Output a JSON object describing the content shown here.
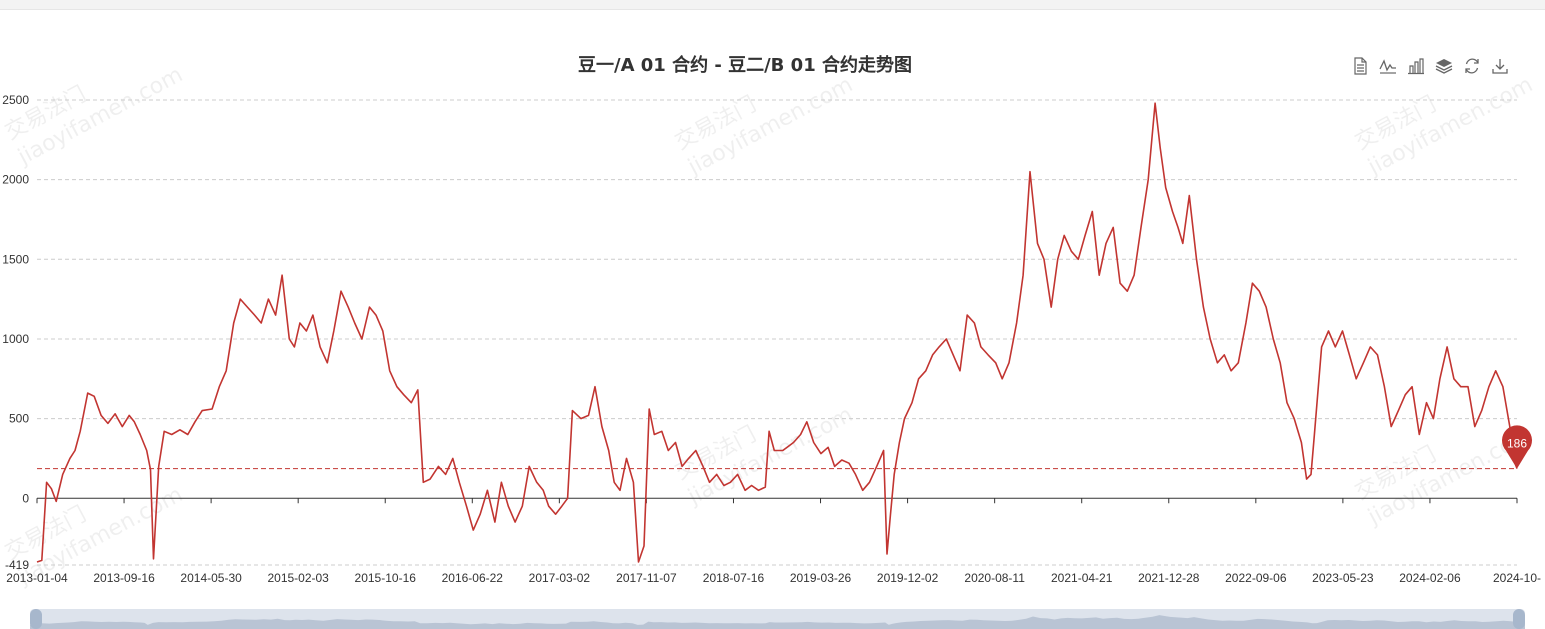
{
  "chart_title": "豆一/A 01 合约 - 豆二/B 01 合约走势图",
  "toolbox": [
    {
      "name": "data-view-icon"
    },
    {
      "name": "line-chart-icon"
    },
    {
      "name": "bar-chart-icon"
    },
    {
      "name": "stack-icon"
    },
    {
      "name": "restore-icon"
    },
    {
      "name": "download-icon"
    }
  ],
  "watermark": {
    "line1": "交易法门",
    "line2": "jiaoyifamen.com"
  },
  "colors": {
    "series": "#c23531",
    "grid": "#cccccc",
    "slider": "#c9d3e0"
  },
  "chart_data": {
    "type": "line",
    "title": "豆一/A 01 合约 - 豆二/B 01 合约走势图",
    "ylim": [
      -419,
      2500
    ],
    "y_ticks": [
      "2500",
      "2000",
      "1500",
      "1000",
      "500",
      "0",
      "-419"
    ],
    "x_ticks": [
      "2013-01-04",
      "2013-09-16",
      "2014-05-30",
      "2015-02-03",
      "2015-10-16",
      "2016-06-22",
      "2017-03-02",
      "2017-11-07",
      "2018-07-16",
      "2019-03-26",
      "2019-12-02",
      "2020-08-11",
      "2021-04-21",
      "2021-12-28",
      "2022-09-06",
      "2023-05-23",
      "2024-02-06",
      "2024-10-"
    ],
    "x_range": [
      "2013-01-04",
      "2024-10-31"
    ],
    "mark_line": 186,
    "mark_point": {
      "label": "186",
      "value": 186
    },
    "grid": true,
    "legend": "none",
    "series": [
      {
        "points": [
          [
            "2013-01-04",
            -400
          ],
          [
            "2013-01-18",
            -390
          ],
          [
            "2013-02-01",
            100
          ],
          [
            "2013-02-15",
            60
          ],
          [
            "2013-03-01",
            -20
          ],
          [
            "2013-03-20",
            150
          ],
          [
            "2013-04-10",
            250
          ],
          [
            "2013-04-25",
            300
          ],
          [
            "2013-05-10",
            420
          ],
          [
            "2013-06-01",
            660
          ],
          [
            "2013-06-20",
            640
          ],
          [
            "2013-07-10",
            520
          ],
          [
            "2013-07-30",
            470
          ],
          [
            "2013-08-20",
            530
          ],
          [
            "2013-09-10",
            450
          ],
          [
            "2013-09-30",
            520
          ],
          [
            "2013-10-15",
            480
          ],
          [
            "2013-11-01",
            400
          ],
          [
            "2013-11-20",
            300
          ],
          [
            "2013-12-01",
            180
          ],
          [
            "2013-12-10",
            -380
          ],
          [
            "2013-12-25",
            200
          ],
          [
            "2014-01-10",
            420
          ],
          [
            "2014-02-01",
            400
          ],
          [
            "2014-02-25",
            430
          ],
          [
            "2014-03-20",
            400
          ],
          [
            "2014-04-10",
            480
          ],
          [
            "2014-05-01",
            550
          ],
          [
            "2014-05-30",
            560
          ],
          [
            "2014-06-20",
            700
          ],
          [
            "2014-07-10",
            800
          ],
          [
            "2014-08-01",
            1100
          ],
          [
            "2014-08-20",
            1250
          ],
          [
            "2014-09-10",
            1200
          ],
          [
            "2014-10-01",
            1150
          ],
          [
            "2014-10-20",
            1100
          ],
          [
            "2014-11-10",
            1250
          ],
          [
            "2014-12-01",
            1150
          ],
          [
            "2014-12-20",
            1400
          ],
          [
            "2015-01-10",
            1000
          ],
          [
            "2015-01-25",
            950
          ],
          [
            "2015-02-10",
            1100
          ],
          [
            "2015-03-01",
            1050
          ],
          [
            "2015-03-20",
            1150
          ],
          [
            "2015-04-10",
            950
          ],
          [
            "2015-05-01",
            850
          ],
          [
            "2015-05-20",
            1050
          ],
          [
            "2015-06-10",
            1300
          ],
          [
            "2015-07-01",
            1200
          ],
          [
            "2015-07-20",
            1100
          ],
          [
            "2015-08-10",
            1000
          ],
          [
            "2015-09-01",
            1200
          ],
          [
            "2015-09-20",
            1150
          ],
          [
            "2015-10-10",
            1050
          ],
          [
            "2015-10-30",
            800
          ],
          [
            "2015-11-20",
            700
          ],
          [
            "2015-12-10",
            650
          ],
          [
            "2016-01-01",
            600
          ],
          [
            "2016-01-20",
            680
          ],
          [
            "2016-02-05",
            100
          ],
          [
            "2016-02-25",
            120
          ],
          [
            "2016-03-20",
            200
          ],
          [
            "2016-04-10",
            150
          ],
          [
            "2016-05-01",
            250
          ],
          [
            "2016-05-20",
            100
          ],
          [
            "2016-06-10",
            -50
          ],
          [
            "2016-06-30",
            -200
          ],
          [
            "2016-07-20",
            -100
          ],
          [
            "2016-08-10",
            50
          ],
          [
            "2016-09-01",
            -150
          ],
          [
            "2016-09-20",
            100
          ],
          [
            "2016-10-10",
            -50
          ],
          [
            "2016-10-30",
            -150
          ],
          [
            "2016-11-20",
            -50
          ],
          [
            "2016-12-10",
            200
          ],
          [
            "2017-01-01",
            100
          ],
          [
            "2017-01-20",
            50
          ],
          [
            "2017-02-05",
            -50
          ],
          [
            "2017-02-25",
            -100
          ],
          [
            "2017-03-15",
            -50
          ],
          [
            "2017-04-01",
            0
          ],
          [
            "2017-04-15",
            550
          ],
          [
            "2017-05-10",
            500
          ],
          [
            "2017-06-01",
            520
          ],
          [
            "2017-06-20",
            700
          ],
          [
            "2017-07-10",
            450
          ],
          [
            "2017-07-30",
            300
          ],
          [
            "2017-08-15",
            100
          ],
          [
            "2017-09-01",
            50
          ],
          [
            "2017-09-20",
            250
          ],
          [
            "2017-10-10",
            100
          ],
          [
            "2017-10-25",
            -400
          ],
          [
            "2017-11-10",
            -300
          ],
          [
            "2017-11-25",
            560
          ],
          [
            "2017-12-10",
            400
          ],
          [
            "2018-01-01",
            420
          ],
          [
            "2018-01-20",
            300
          ],
          [
            "2018-02-10",
            350
          ],
          [
            "2018-03-01",
            200
          ],
          [
            "2018-03-20",
            250
          ],
          [
            "2018-04-10",
            300
          ],
          [
            "2018-05-01",
            200
          ],
          [
            "2018-05-20",
            100
          ],
          [
            "2018-06-10",
            150
          ],
          [
            "2018-07-01",
            80
          ],
          [
            "2018-07-20",
            100
          ],
          [
            "2018-08-10",
            150
          ],
          [
            "2018-09-01",
            50
          ],
          [
            "2018-09-20",
            80
          ],
          [
            "2018-10-10",
            50
          ],
          [
            "2018-10-30",
            70
          ],
          [
            "2018-11-10",
            420
          ],
          [
            "2018-11-25",
            300
          ],
          [
            "2018-12-20",
            300
          ],
          [
            "2019-01-20",
            350
          ],
          [
            "2019-02-10",
            400
          ],
          [
            "2019-02-28",
            480
          ],
          [
            "2019-03-20",
            350
          ],
          [
            "2019-04-10",
            280
          ],
          [
            "2019-05-01",
            320
          ],
          [
            "2019-05-20",
            200
          ],
          [
            "2019-06-10",
            240
          ],
          [
            "2019-07-01",
            220
          ],
          [
            "2019-07-20",
            150
          ],
          [
            "2019-08-10",
            50
          ],
          [
            "2019-08-30",
            100
          ],
          [
            "2019-09-20",
            200
          ],
          [
            "2019-10-10",
            300
          ],
          [
            "2019-10-20",
            -350
          ],
          [
            "2019-10-30",
            -100
          ],
          [
            "2019-11-10",
            150
          ],
          [
            "2019-11-25",
            350
          ],
          [
            "2019-12-10",
            500
          ],
          [
            "2020-01-01",
            600
          ],
          [
            "2020-01-20",
            750
          ],
          [
            "2020-02-10",
            800
          ],
          [
            "2020-03-01",
            900
          ],
          [
            "2020-03-20",
            950
          ],
          [
            "2020-04-10",
            1000
          ],
          [
            "2020-04-30",
            900
          ],
          [
            "2020-05-20",
            800
          ],
          [
            "2020-06-10",
            1150
          ],
          [
            "2020-07-01",
            1100
          ],
          [
            "2020-07-20",
            950
          ],
          [
            "2020-08-10",
            900
          ],
          [
            "2020-09-01",
            850
          ],
          [
            "2020-09-20",
            750
          ],
          [
            "2020-10-10",
            850
          ],
          [
            "2020-11-01",
            1100
          ],
          [
            "2020-11-20",
            1400
          ],
          [
            "2020-12-10",
            2050
          ],
          [
            "2021-01-01",
            1600
          ],
          [
            "2021-01-20",
            1500
          ],
          [
            "2021-02-10",
            1200
          ],
          [
            "2021-03-01",
            1500
          ],
          [
            "2021-03-20",
            1650
          ],
          [
            "2021-04-10",
            1550
          ],
          [
            "2021-04-30",
            1500
          ],
          [
            "2021-05-20",
            1650
          ],
          [
            "2021-06-10",
            1800
          ],
          [
            "2021-06-30",
            1400
          ],
          [
            "2021-07-20",
            1600
          ],
          [
            "2021-08-10",
            1700
          ],
          [
            "2021-08-30",
            1350
          ],
          [
            "2021-09-20",
            1300
          ],
          [
            "2021-10-10",
            1400
          ],
          [
            "2021-10-30",
            1700
          ],
          [
            "2021-11-20",
            2000
          ],
          [
            "2021-12-10",
            2480
          ],
          [
            "2021-12-25",
            2200
          ],
          [
            "2022-01-10",
            1950
          ],
          [
            "2022-01-30",
            1800
          ],
          [
            "2022-02-15",
            1700
          ],
          [
            "2022-03-01",
            1600
          ],
          [
            "2022-03-20",
            1900
          ],
          [
            "2022-04-10",
            1500
          ],
          [
            "2022-04-30",
            1200
          ],
          [
            "2022-05-20",
            1000
          ],
          [
            "2022-06-10",
            850
          ],
          [
            "2022-06-30",
            900
          ],
          [
            "2022-07-20",
            800
          ],
          [
            "2022-08-10",
            850
          ],
          [
            "2022-09-01",
            1100
          ],
          [
            "2022-09-20",
            1350
          ],
          [
            "2022-10-10",
            1300
          ],
          [
            "2022-10-30",
            1200
          ],
          [
            "2022-11-20",
            1000
          ],
          [
            "2022-12-10",
            850
          ],
          [
            "2022-12-30",
            600
          ],
          [
            "2023-01-20",
            500
          ],
          [
            "2023-02-10",
            350
          ],
          [
            "2023-02-25",
            120
          ],
          [
            "2023-03-10",
            150
          ],
          [
            "2023-03-20",
            400
          ],
          [
            "2023-04-10",
            950
          ],
          [
            "2023-04-30",
            1050
          ],
          [
            "2023-05-20",
            950
          ],
          [
            "2023-06-10",
            1050
          ],
          [
            "2023-06-30",
            900
          ],
          [
            "2023-07-20",
            750
          ],
          [
            "2023-08-10",
            850
          ],
          [
            "2023-08-30",
            950
          ],
          [
            "2023-09-20",
            900
          ],
          [
            "2023-10-10",
            700
          ],
          [
            "2023-10-30",
            450
          ],
          [
            "2023-11-20",
            550
          ],
          [
            "2023-12-10",
            650
          ],
          [
            "2023-12-30",
            700
          ],
          [
            "2024-01-20",
            400
          ],
          [
            "2024-02-10",
            600
          ],
          [
            "2024-03-01",
            500
          ],
          [
            "2024-03-20",
            750
          ],
          [
            "2024-04-10",
            950
          ],
          [
            "2024-04-30",
            750
          ],
          [
            "2024-05-20",
            700
          ],
          [
            "2024-06-10",
            700
          ],
          [
            "2024-06-30",
            450
          ],
          [
            "2024-07-20",
            550
          ],
          [
            "2024-08-10",
            700
          ],
          [
            "2024-08-30",
            800
          ],
          [
            "2024-09-20",
            700
          ],
          [
            "2024-10-10",
            450
          ],
          [
            "2024-10-20",
            250
          ],
          [
            "2024-10-31",
            186
          ]
        ]
      }
    ]
  }
}
